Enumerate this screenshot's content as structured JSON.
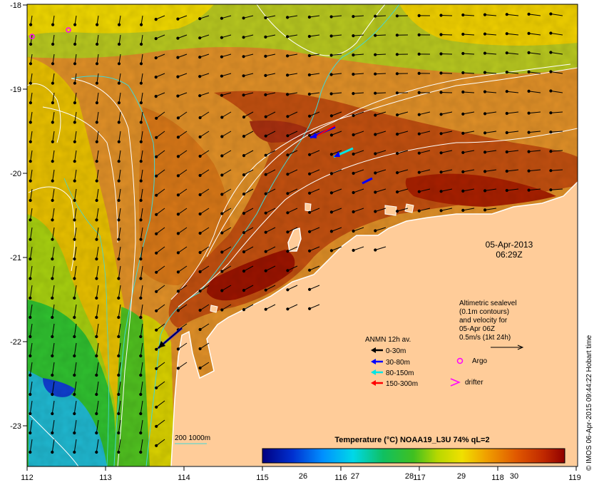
{
  "map": {
    "lon_ticks": [
      "112",
      "113",
      "114",
      "115",
      "116",
      "117",
      "118",
      "119"
    ],
    "lat_ticks": [
      "-18",
      "-19",
      "-20",
      "-21",
      "-22",
      "-23"
    ],
    "date": "05-Apr-2013",
    "time": "06:29Z",
    "altimetry_note": [
      "Altimetric sealevel",
      "(0.1m contours)",
      "and velocity for",
      "05-Apr 06Z",
      "0.5m/s (1kt 24h)"
    ],
    "legend": {
      "title": "ANMN 12h av.",
      "items": [
        {
          "label": "0-30m",
          "color": "#000000"
        },
        {
          "label": "30-80m",
          "color": "#0000ff"
        },
        {
          "label": "80-150m",
          "color": "#00e5e5"
        },
        {
          "label": "150-300m",
          "color": "#ff0000"
        }
      ],
      "argo_label": "Argo",
      "drifter_label": "drifter",
      "argo_color": "#ff00ff"
    },
    "bathymetry_label": "200  1000m",
    "colorbar": {
      "title": "Temperature (°C) NOAA19_L3U 74% qL=2",
      "ticks": [
        "26",
        "27",
        "28",
        "29",
        "30"
      ]
    },
    "credit": "© IMOS 06-Apr-2015 09:44:22 Hobart time",
    "colors": {
      "land": "#ffcc99",
      "warm": "#a01800",
      "mid": "#d06a10",
      "cool": "#32b832",
      "cold": "#1ec8e8"
    }
  }
}
